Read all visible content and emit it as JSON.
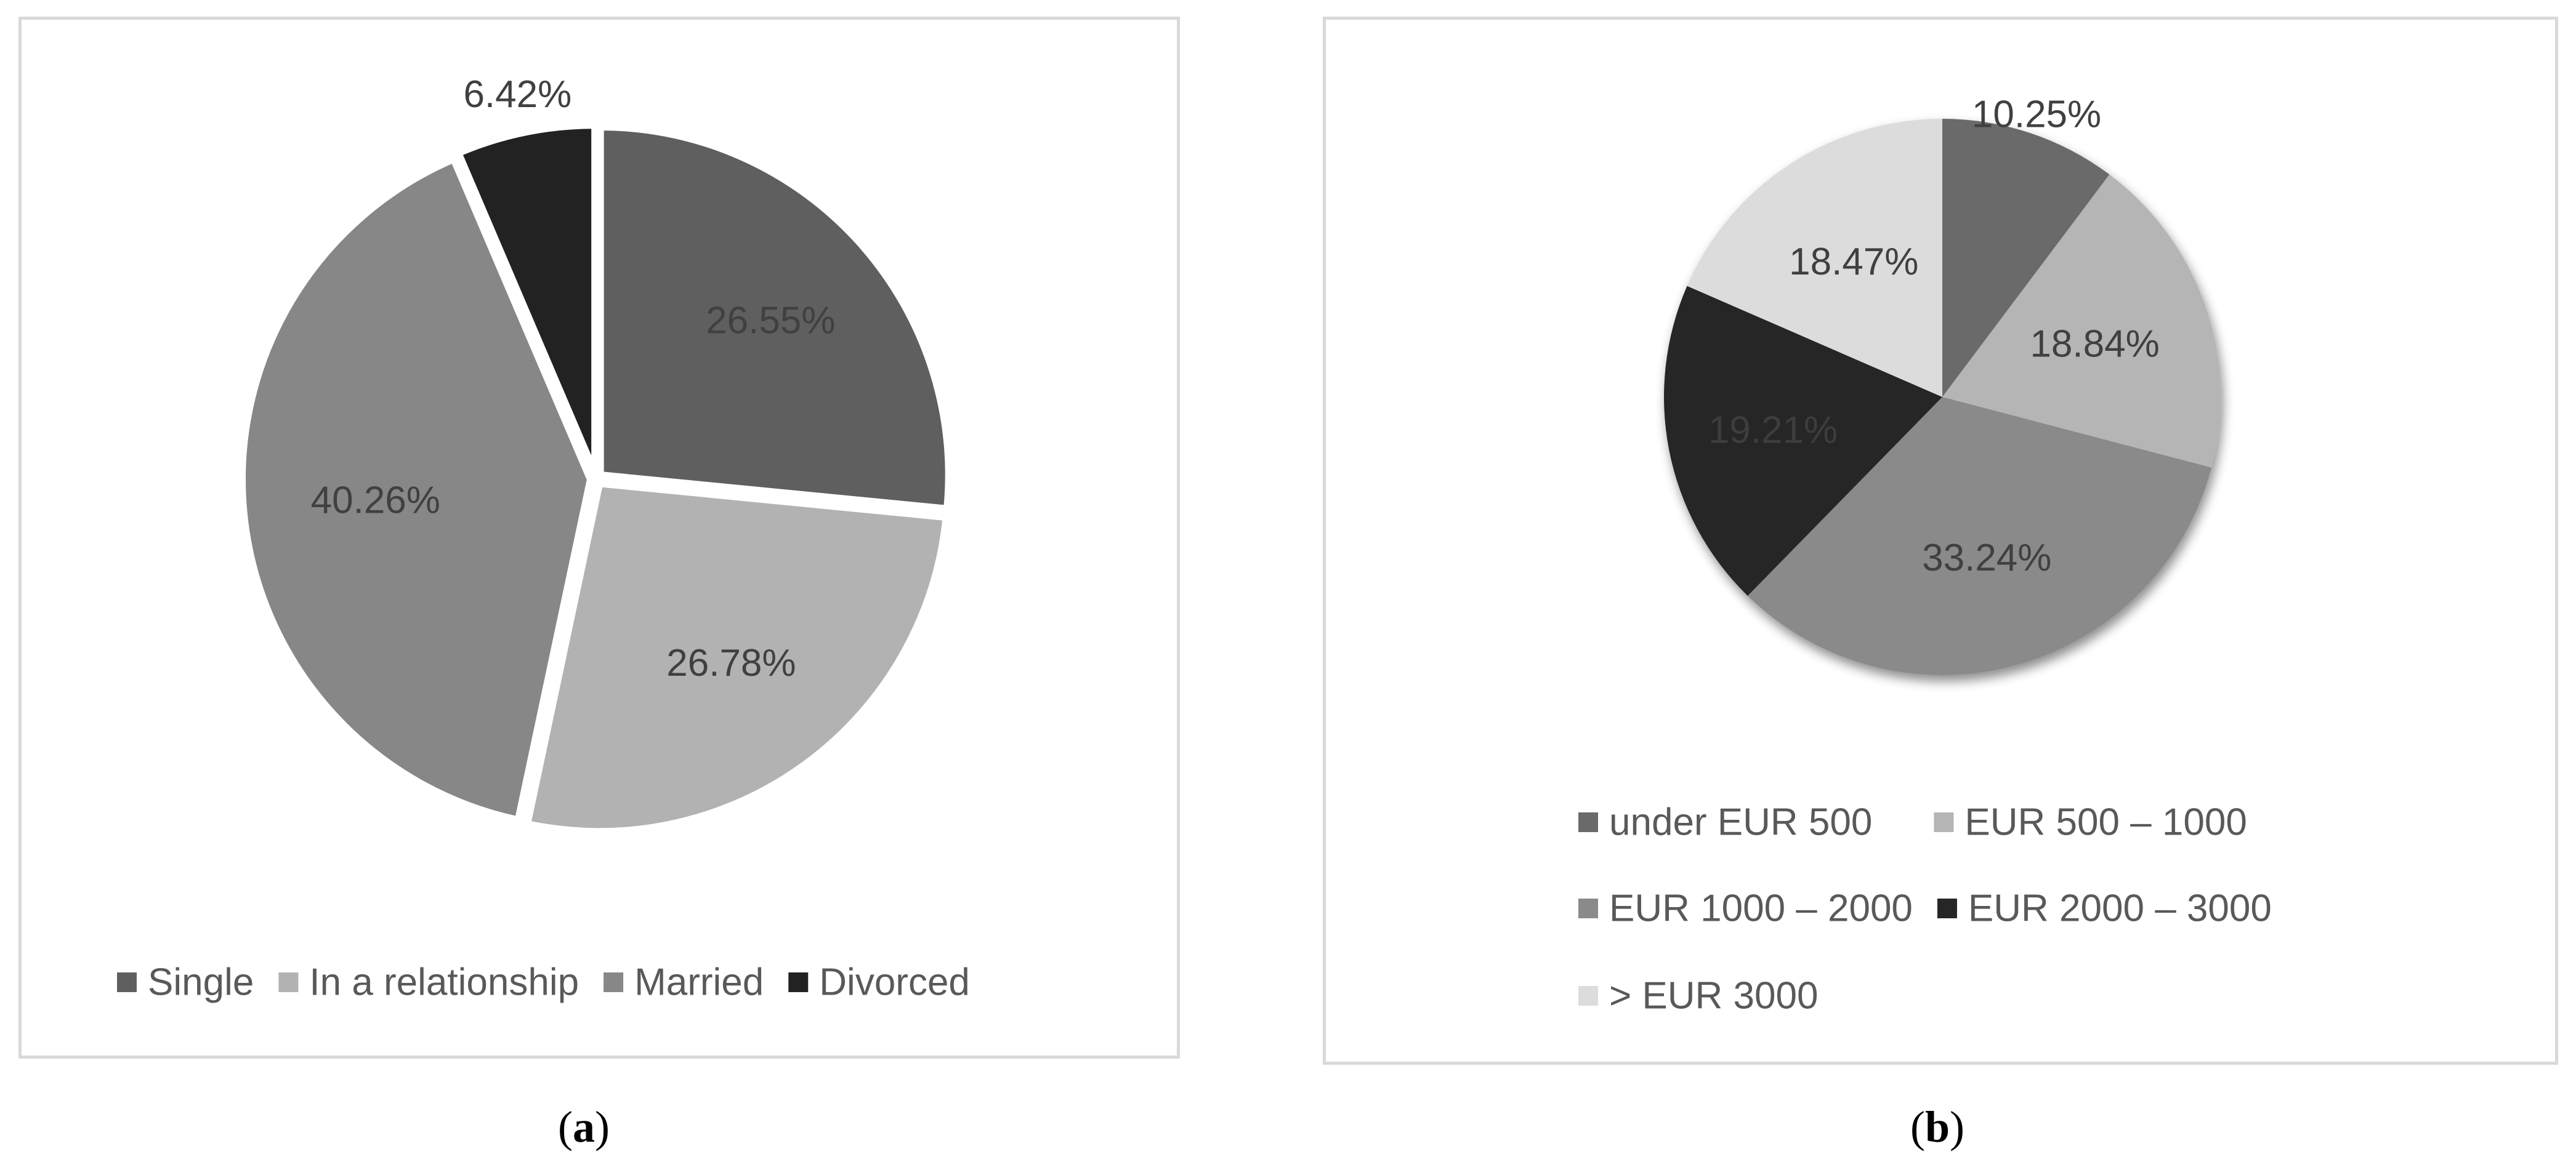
{
  "captions": {
    "a_open": "(",
    "a_letter": "a",
    "a_close": ")",
    "b_open": "(",
    "b_letter": "b",
    "b_close": ")"
  },
  "chart_data": [
    {
      "type": "pie",
      "panel": "a",
      "title": "",
      "categories": [
        "Single",
        "In a relationship",
        "Married",
        "Divorced"
      ],
      "values": [
        26.55,
        26.78,
        40.26,
        6.42
      ],
      "data_labels": [
        "26.55%",
        "26.78%",
        "40.26%",
        "6.42%"
      ],
      "colors": [
        "#5f5f5f",
        "#b2b2b2",
        "#878787",
        "#222222"
      ],
      "label_colors": [
        "#404040",
        "#404040",
        "#404040",
        "#404040"
      ],
      "start_angle_deg": 0,
      "direction": "clockwise",
      "legend": "bottom"
    },
    {
      "type": "pie",
      "panel": "b",
      "title": "",
      "categories": [
        "under EUR 500",
        "EUR 500 – 1000",
        "EUR 1000 – 2000",
        "EUR 2000 – 3000",
        "> EUR 3000"
      ],
      "values": [
        10.25,
        18.84,
        33.24,
        19.21,
        18.47
      ],
      "data_labels": [
        "10.25%",
        "18.84%",
        "33.24%",
        "19.21%",
        "18.47%"
      ],
      "colors": [
        "#6a6a6a",
        "#b5b5b5",
        "#8a8a8a",
        "#262626",
        "#dcdcdc"
      ],
      "label_colors": [
        "#404040",
        "#404040",
        "#404040",
        "#3d3d3d",
        "#404040"
      ],
      "start_angle_deg": 0,
      "direction": "clockwise",
      "legend": "bottom"
    }
  ]
}
